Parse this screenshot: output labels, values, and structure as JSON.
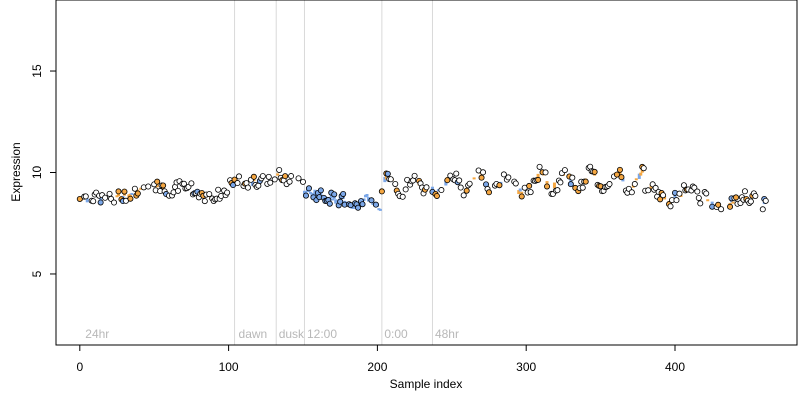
{
  "chart_data": {
    "type": "scatter",
    "xlabel": "Sample index",
    "ylabel": "Expression",
    "xlim": [
      -16,
      482
    ],
    "ylim": [
      1.5,
      18.5
    ],
    "x_ticks": [
      0,
      100,
      200,
      300,
      400
    ],
    "y_ticks": [
      5,
      10,
      15
    ],
    "grid": false,
    "legend": "none",
    "colors": {
      "point_edge": "#000000",
      "point_fill": "#ffffff",
      "orange_fill": "#f5a742",
      "blue_fill": "#7ba7e8",
      "annotation": "#b8b8b8",
      "divider": "#d9d9d9"
    },
    "dividers": [
      104,
      132,
      151,
      203,
      237
    ],
    "annotations": [
      {
        "text": "24hr",
        "x": 3
      },
      {
        "text": "dawn",
        "x": 106
      },
      {
        "text": "dusk",
        "x": 133
      },
      {
        "text": "12:00",
        "x": 152
      },
      {
        "text": "0:00",
        "x": 204
      },
      {
        "text": "48hr",
        "x": 238
      }
    ],
    "segment_means": [
      {
        "x0": 0,
        "x1": 30,
        "y": 8.8
      },
      {
        "x0": 30,
        "x1": 60,
        "y": 9.4
      },
      {
        "x0": 60,
        "x1": 104,
        "y": 9.2
      },
      {
        "x0": 104,
        "x1": 132,
        "y": 9.6
      },
      {
        "x0": 132,
        "x1": 151,
        "y": 9.7
      },
      {
        "x0": 151,
        "x1": 175,
        "y": 9.0
      },
      {
        "x0": 175,
        "x1": 203,
        "y": 8.5
      },
      {
        "x0": 203,
        "x1": 237,
        "y": 9.4
      },
      {
        "x0": 237,
        "x1": 300,
        "y": 9.5
      },
      {
        "x0": 300,
        "x1": 380,
        "y": 9.6
      },
      {
        "x0": 380,
        "x1": 420,
        "y": 8.9
      },
      {
        "x0": 420,
        "x1": 460,
        "y": 8.6
      }
    ]
  }
}
